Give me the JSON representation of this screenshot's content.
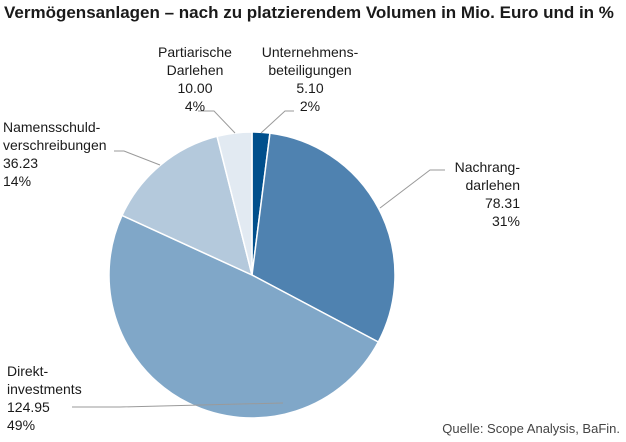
{
  "chart_data": {
    "type": "pie",
    "title": "Vermögensanlagen – nach zu platzierendem Volumen in Mio. Euro und in %",
    "slices": [
      {
        "name_lines": [
          "Unternehmens-",
          "beteiligungen"
        ],
        "value": 5.1,
        "value_label": "5.10",
        "percent_label": "2%",
        "color": "#004f8c"
      },
      {
        "name_lines": [
          "Nachrang-",
          "darlehen"
        ],
        "value": 78.31,
        "value_label": "78.31",
        "percent_label": "31%",
        "color": "#4f82b0"
      },
      {
        "name_lines": [
          "Direkt-",
          "investments"
        ],
        "value": 124.95,
        "value_label": "124.95",
        "percent_label": "49%",
        "color": "#80a7c8"
      },
      {
        "name_lines": [
          "Namensschuld-",
          "verschreibungen"
        ],
        "value": 36.23,
        "value_label": "36.23",
        "percent_label": "14%",
        "color": "#b4c9dc"
      },
      {
        "name_lines": [
          "Partiarische",
          "Darlehen"
        ],
        "value": 10.0,
        "value_label": "10.00",
        "percent_label": "4%",
        "color": "#e2eaf2"
      }
    ],
    "start": "top",
    "direction": "clockwise",
    "source": "Quelle: Scope Analysis, BaFin."
  }
}
